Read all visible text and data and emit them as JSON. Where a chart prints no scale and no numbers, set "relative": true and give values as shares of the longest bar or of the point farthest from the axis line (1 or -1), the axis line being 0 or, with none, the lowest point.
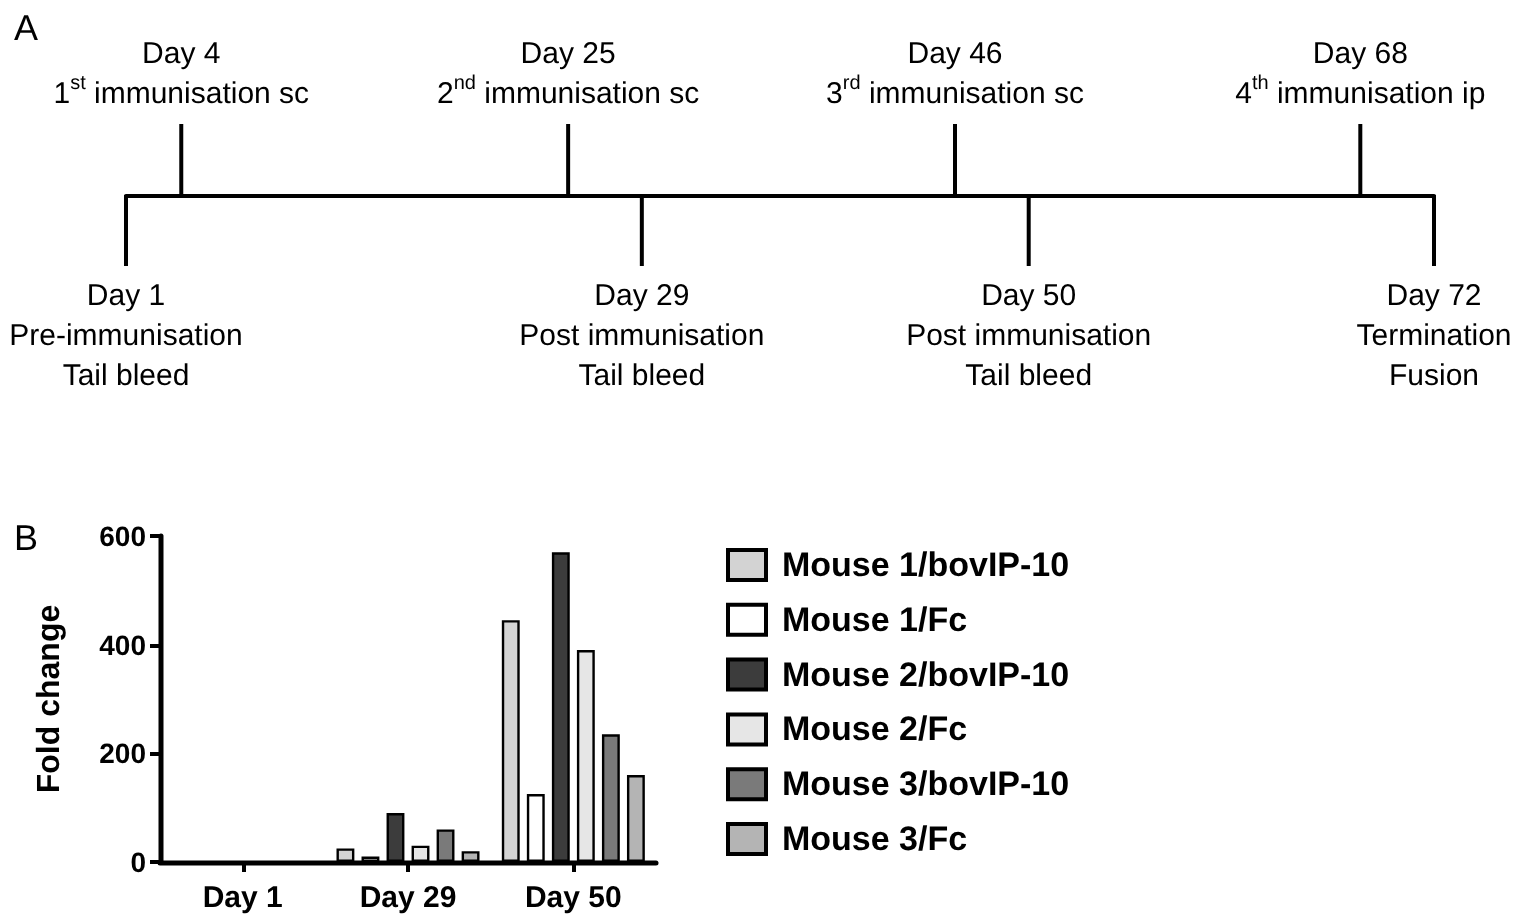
{
  "chart_data": [
    {
      "type": "bar",
      "title": "A",
      "relative": true,
      "color": "#000000",
      "categories": [
        "Day 1\nPre-immunisation\nTail bleed",
        null,
        null,
        "Day 4\n1$^{st}$ immunisation sc",
        null,
        null,
        null,
        null,
        null,
        null,
        null,
        null,
        null,
        null,
        null,
        null,
        null,
        null,
        null,
        null,
        null,
        null,
        null,
        null,
        "Day 25\n2$^{nd}$ immunisation sc",
        null,
        null,
        null,
        "Day 29\nPost immunisation\nTail bleed",
        null,
        null,
        null,
        null,
        null,
        null,
        null,
        null,
        null,
        null,
        null,
        null,
        null,
        null,
        null,
        null,
        "Day 46\n3$^{rd}$ immunisation sc",
        null,
        null,
        null,
        "Day 50\nPost immunisation\nTail bleed",
        null,
        null,
        null,
        null,
        null,
        null,
        null,
        null,
        null,
        null,
        null,
        null,
        null,
        null,
        null,
        null,
        null,
        "Day 68\n4$^{th}$ immunisation ip",
        null,
        null,
        null,
        "Day 72\nTermination\nFusion"
      ],
      "values": [
        -1,
        null,
        null,
        1,
        null,
        null,
        null,
        null,
        null,
        null,
        null,
        null,
        null,
        null,
        null,
        null,
        null,
        null,
        null,
        null,
        null,
        null,
        null,
        null,
        1,
        null,
        null,
        null,
        -1,
        null,
        null,
        null,
        null,
        null,
        null,
        null,
        null,
        null,
        null,
        null,
        null,
        null,
        null,
        null,
        null,
        1,
        null,
        null,
        null,
        -1,
        null,
        null,
        null,
        null,
        null,
        null,
        null,
        null,
        null,
        null,
        null,
        null,
        null,
        null,
        null,
        null,
        null,
        1,
        null,
        null,
        null,
        -1
      ]
    },
    {
      "type": "bar",
      "title": "B",
      "ylabel": "Fold change",
      "categories": [
        "Day 1",
        "Day 29",
        "Day 50"
      ],
      "series": [
        {
          "name": "Mouse 1/bovIP-10",
          "color": "#d3d3d3",
          "values": [
            null,
            25,
            445
          ]
        },
        {
          "name": "Mouse 1/Fc",
          "color": "#ffffff",
          "values": [
            null,
            10,
            125
          ]
        },
        {
          "name": "Mouse 2/bovIP-10",
          "color": "#3c3c3c",
          "values": [
            null,
            90,
            570
          ]
        },
        {
          "name": "Mouse 2/Fc",
          "color": "#e6e6e6",
          "values": [
            null,
            30,
            390
          ]
        },
        {
          "name": "Mouse 3/bovIP-10",
          "color": "#7a7a7a",
          "values": [
            null,
            60,
            235
          ]
        },
        {
          "name": "Mouse 3/Fc",
          "color": "#b4b4b4",
          "values": [
            null,
            20,
            160
          ]
        }
      ],
      "ylim": [
        0,
        600
      ],
      "yticks": [
        0,
        200,
        400,
        600
      ],
      "grid": false,
      "legend": "right"
    }
  ]
}
